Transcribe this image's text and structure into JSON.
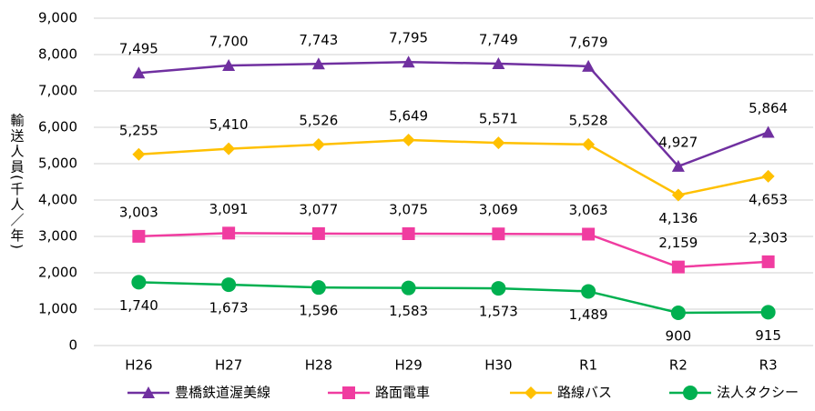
{
  "chart_data": {
    "type": "line",
    "y_label": "輸送人員(千人／年)",
    "categories": [
      "H26",
      "H27",
      "H28",
      "H29",
      "H30",
      "R1",
      "R2",
      "R3"
    ],
    "series": [
      {
        "name": "豊橋鉄道渥美線",
        "color": "#7030a0",
        "marker": "triangle",
        "values": [
          7495,
          7700,
          7743,
          7795,
          7749,
          7679,
          4927,
          5864
        ],
        "value_labels": [
          "7,495",
          "7,700",
          "7,743",
          "7,795",
          "7,749",
          "7,679",
          "4,927",
          "5,864"
        ]
      },
      {
        "name": "路面電車",
        "color": "#f03ca0",
        "marker": "square",
        "values": [
          3003,
          3091,
          3077,
          3075,
          3069,
          3063,
          2159,
          2303
        ],
        "value_labels": [
          "3,003",
          "3,091",
          "3,077",
          "3,075",
          "3,069",
          "3,063",
          "2,159",
          "2,303"
        ]
      },
      {
        "name": "路線バス",
        "color": "#ffc000",
        "marker": "diamond",
        "values": [
          5255,
          5410,
          5526,
          5649,
          5571,
          5528,
          4136,
          4653
        ],
        "value_labels": [
          "5,255",
          "5,410",
          "5,526",
          "5,649",
          "5,571",
          "5,528",
          "4,136",
          "4,653"
        ]
      },
      {
        "name": "法人タクシー",
        "color": "#00b050",
        "marker": "circle",
        "values": [
          1740,
          1673,
          1596,
          1583,
          1573,
          1489,
          900,
          915
        ],
        "value_labels": [
          "1,740",
          "1,673",
          "1,596",
          "1,583",
          "1,573",
          "1,489",
          "900",
          "915"
        ]
      }
    ],
    "ylim": [
      0,
      9000
    ],
    "yticks": [
      0,
      {
        "value": 1000,
        "label": "1,000"
      },
      {
        "value": 2000,
        "label": "2,000"
      },
      {
        "value": 3000,
        "label": "3,000"
      },
      {
        "value": 4000,
        "label": "4,000"
      },
      {
        "value": 5000,
        "label": "5,000"
      },
      {
        "value": 6000,
        "label": "6,000"
      },
      {
        "value": 7000,
        "label": "7,000"
      },
      {
        "value": 8000,
        "label": "8,000"
      },
      {
        "value": 9000,
        "label": "9,000"
      }
    ],
    "grid": true,
    "legend": "bottom"
  }
}
